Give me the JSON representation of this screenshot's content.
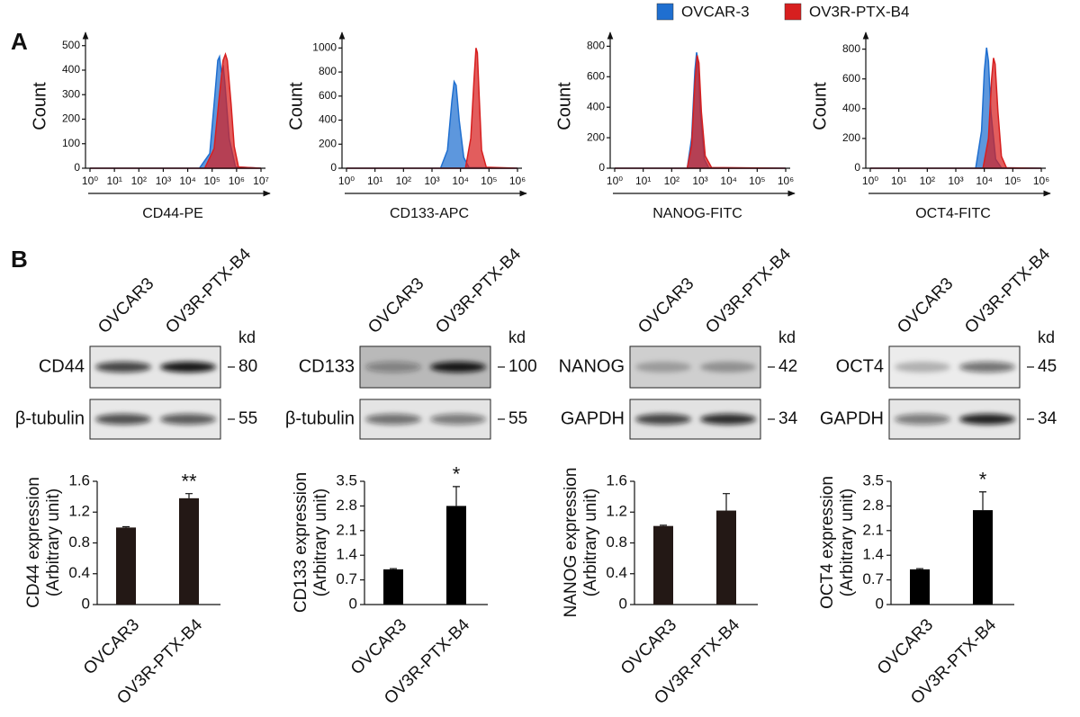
{
  "panel_labels": [
    "A",
    "B"
  ],
  "legend": [
    {
      "name": "OVCAR-3",
      "color": "#1f6fd0"
    },
    {
      "name": "OV3R-PTX-B4",
      "color": "#d71f1f"
    }
  ],
  "chart_data": [
    {
      "type": "density",
      "xlabel": "CD44-PE",
      "ylabel": "Count",
      "log_x": true,
      "xlim": [
        1,
        10000000
      ],
      "xticks": [
        {
          "value": 1,
          "label": "10⁰"
        },
        {
          "value": 10,
          "label": "10¹"
        },
        {
          "value": 100,
          "label": "10²"
        },
        {
          "value": 1000,
          "label": "10³"
        },
        {
          "value": 10000,
          "label": "10⁴"
        },
        {
          "value": 100000,
          "label": "10⁵"
        },
        {
          "value": 1000000,
          "label": "10⁶"
        },
        {
          "value": 10000000,
          "label": "10⁷"
        }
      ],
      "ylim": [
        0,
        510
      ],
      "yticks": [
        0,
        100,
        200,
        300,
        400,
        500
      ],
      "series": [
        {
          "color": "#1f6fd0",
          "x": [
            1,
            30000,
            80000,
            130000,
            170000,
            200000,
            240000,
            280000,
            330000,
            500000,
            900000,
            10000000
          ],
          "values": [
            0,
            0,
            60,
            300,
            440,
            455,
            390,
            420,
            350,
            120,
            5,
            0
          ]
        },
        {
          "color": "#d71f1f",
          "x": [
            1,
            50000,
            120000,
            200000,
            280000,
            350000,
            420000,
            600000,
            800000,
            1200000,
            10000000
          ],
          "values": [
            0,
            0,
            80,
            300,
            440,
            465,
            440,
            260,
            90,
            5,
            0
          ]
        }
      ]
    },
    {
      "type": "density",
      "xlabel": "CD133-APC",
      "ylabel": "Count",
      "log_x": true,
      "xlim": [
        1,
        1000000
      ],
      "xticks": [
        {
          "value": 1,
          "label": "10⁰"
        },
        {
          "value": 10,
          "label": "10¹"
        },
        {
          "value": 100,
          "label": "10²"
        },
        {
          "value": 1000,
          "label": "10³"
        },
        {
          "value": 10000,
          "label": "10⁴"
        },
        {
          "value": 100000,
          "label": "10⁵"
        },
        {
          "value": 1000000,
          "label": "10⁶"
        }
      ],
      "ylim": [
        0,
        1040
      ],
      "yticks": [
        0,
        200,
        400,
        600,
        800,
        1000
      ],
      "series": [
        {
          "color": "#1f6fd0",
          "x": [
            1,
            2000,
            3500,
            5000,
            6000,
            7000,
            9000,
            13000,
            20000,
            1000000
          ],
          "values": [
            0,
            0,
            150,
            560,
            720,
            690,
            400,
            90,
            5,
            0
          ]
        },
        {
          "color": "#d71f1f",
          "x": [
            1,
            15000,
            23000,
            30000,
            35000,
            39000,
            45000,
            55000,
            80000,
            1000000
          ],
          "values": [
            0,
            0,
            250,
            750,
            1000,
            960,
            600,
            150,
            8,
            0
          ]
        }
      ]
    },
    {
      "type": "density",
      "xlabel": "NANOG-FITC",
      "ylabel": "Count",
      "log_x": true,
      "xlim": [
        1,
        1000000
      ],
      "xticks": [
        {
          "value": 1,
          "label": "10⁰"
        },
        {
          "value": 10,
          "label": "10¹"
        },
        {
          "value": 100,
          "label": "10²"
        },
        {
          "value": 1000,
          "label": "10³"
        },
        {
          "value": 10000,
          "label": "10⁴"
        },
        {
          "value": 100000,
          "label": "10⁵"
        },
        {
          "value": 1000000,
          "label": "10⁶"
        }
      ],
      "ylim": [
        0,
        820
      ],
      "yticks": [
        0,
        200,
        400,
        600,
        800
      ],
      "series": [
        {
          "color": "#1f6fd0",
          "x": [
            1,
            350,
            500,
            650,
            750,
            850,
            1000,
            1400,
            2000,
            1000000
          ],
          "values": [
            0,
            0,
            200,
            640,
            760,
            700,
            380,
            60,
            3,
            0
          ]
        },
        {
          "color": "#d71f1f",
          "x": [
            1,
            350,
            500,
            650,
            780,
            900,
            1100,
            1500,
            2500,
            1000000
          ],
          "values": [
            0,
            0,
            150,
            560,
            740,
            690,
            370,
            80,
            5,
            0
          ]
        }
      ]
    },
    {
      "type": "density",
      "xlabel": "OCT4-FITC",
      "ylabel": "Count",
      "log_x": true,
      "xlim": [
        1,
        1000000
      ],
      "xticks": [
        {
          "value": 1,
          "label": "10⁰"
        },
        {
          "value": 10,
          "label": "10¹"
        },
        {
          "value": 100,
          "label": "10²"
        },
        {
          "value": 1000,
          "label": "10³"
        },
        {
          "value": 10000,
          "label": "10⁴"
        },
        {
          "value": 100000,
          "label": "10⁵"
        },
        {
          "value": 1000000,
          "label": "10⁶"
        }
      ],
      "ylim": [
        0,
        840
      ],
      "yticks": [
        0,
        200,
        400,
        600,
        800
      ],
      "series": [
        {
          "color": "#1f6fd0",
          "x": [
            1,
            5000,
            8000,
            10000,
            12000,
            14000,
            17000,
            25000,
            40000,
            1000000
          ],
          "values": [
            0,
            0,
            250,
            650,
            810,
            720,
            380,
            60,
            3,
            0
          ]
        },
        {
          "color": "#d71f1f",
          "x": [
            1,
            9000,
            14000,
            18000,
            21000,
            24000,
            30000,
            40000,
            60000,
            1000000
          ],
          "values": [
            0,
            0,
            200,
            600,
            740,
            700,
            380,
            80,
            3,
            0
          ]
        }
      ]
    },
    {
      "type": "bar",
      "ylabel": [
        "CD44 expression",
        "(Arbitrary unit)"
      ],
      "categories": [
        "OVCAR3",
        "OV3R-PTX-B4"
      ],
      "values": [
        1.0,
        1.38
      ],
      "errors": [
        0.01,
        0.06
      ],
      "color": "#231815",
      "annotation": "**",
      "ylim": [
        0,
        1.6
      ],
      "yticks": [
        0,
        0.4,
        0.8,
        1.2,
        1.6
      ]
    },
    {
      "type": "bar",
      "ylabel": [
        "CD133 expression",
        "(Arbitrary unit)"
      ],
      "categories": [
        "OVCAR3",
        "OV3R-PTX-B4"
      ],
      "values": [
        1.0,
        2.8
      ],
      "errors": [
        0.02,
        0.55
      ],
      "color": "#000000",
      "annotation": "*",
      "ylim": [
        0,
        3.5
      ],
      "yticks": [
        0,
        0.7,
        1.4,
        2.1,
        2.8,
        3.5
      ]
    },
    {
      "type": "bar",
      "ylabel": [
        "NANOG expression",
        "(Arbitrary unit)"
      ],
      "categories": [
        "OVCAR3",
        "OV3R-PTX-B4"
      ],
      "values": [
        1.02,
        1.22
      ],
      "errors": [
        0.01,
        0.22
      ],
      "color": "#231815",
      "ylim": [
        0,
        1.6
      ],
      "yticks": [
        0,
        0.4,
        0.8,
        1.2,
        1.6
      ]
    },
    {
      "type": "bar",
      "ylabel": [
        "OCT4 expression",
        "(Arbitrary unit)"
      ],
      "categories": [
        "OVCAR3",
        "OV3R-PTX-B4"
      ],
      "values": [
        1.0,
        2.68
      ],
      "errors": [
        0.02,
        0.52
      ],
      "color": "#000000",
      "annotation": "*",
      "ylim": [
        0,
        3.5
      ],
      "yticks": [
        0,
        0.7,
        1.4,
        2.1,
        2.8,
        3.5
      ]
    }
  ],
  "blots": [
    {
      "columns": [
        "OVCAR3",
        "OV3R-PTX-B4"
      ],
      "unit": "kd",
      "rows": [
        {
          "label": "CD44",
          "kd": "80"
        },
        {
          "label": "β-tubulin",
          "kd": "55"
        }
      ]
    },
    {
      "columns": [
        "OVCAR3",
        "OV3R-PTX-B4"
      ],
      "unit": "kd",
      "rows": [
        {
          "label": "CD133",
          "kd": "100"
        },
        {
          "label": "β-tubulin",
          "kd": "55"
        }
      ]
    },
    {
      "columns": [
        "OVCAR3",
        "OV3R-PTX-B4"
      ],
      "unit": "kd",
      "rows": [
        {
          "label": "NANOG",
          "kd": "42"
        },
        {
          "label": "GAPDH",
          "kd": "34"
        }
      ]
    },
    {
      "columns": [
        "OVCAR3",
        "OV3R-PTX-B4"
      ],
      "unit": "kd",
      "rows": [
        {
          "label": "OCT4",
          "kd": "45"
        },
        {
          "label": "GAPDH",
          "kd": "34"
        }
      ]
    }
  ]
}
